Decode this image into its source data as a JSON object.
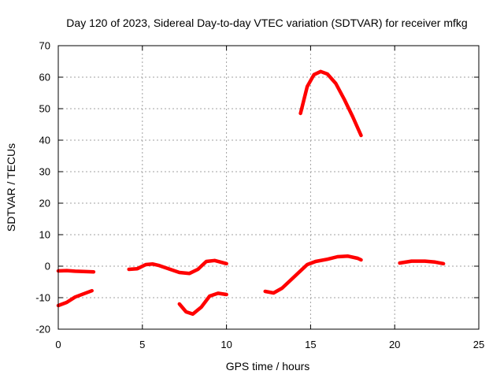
{
  "chart_data": {
    "type": "line",
    "title": "Day 120 of 2023, Sidereal Day-to-day VTEC variation (SDTVAR) for receiver mfkg",
    "xlabel": "GPS time / hours",
    "ylabel": "SDTVAR / TECUs",
    "xlim": [
      0,
      25
    ],
    "ylim": [
      -20,
      70
    ],
    "xticks": [
      0,
      5,
      10,
      15,
      20,
      25
    ],
    "yticks": [
      -20,
      -10,
      0,
      10,
      20,
      30,
      40,
      50,
      60,
      70
    ],
    "grid": true,
    "color": "#ff0000",
    "series": [
      {
        "name": "segment-1",
        "x": [
          0.0,
          0.5,
          1.0,
          1.5,
          2.1
        ],
        "y": [
          -1.5,
          -1.4,
          -1.6,
          -1.7,
          -1.8
        ]
      },
      {
        "name": "segment-2",
        "x": [
          0.0,
          0.5,
          1.0,
          1.5,
          2.0
        ],
        "y": [
          -12.5,
          -11.5,
          -9.8,
          -8.8,
          -7.8
        ]
      },
      {
        "name": "segment-3",
        "x": [
          4.2,
          4.7,
          5.2,
          5.6,
          6.0,
          6.6,
          7.2,
          7.8,
          8.3,
          8.8,
          9.3,
          10.0
        ],
        "y": [
          -1.0,
          -0.8,
          0.5,
          0.7,
          0.2,
          -0.9,
          -2.0,
          -2.3,
          -1.0,
          1.5,
          1.8,
          0.8
        ]
      },
      {
        "name": "segment-4",
        "x": [
          7.2,
          7.6,
          8.0,
          8.5,
          9.0,
          9.5,
          10.0
        ],
        "y": [
          -12.0,
          -14.5,
          -15.2,
          -13.0,
          -9.5,
          -8.6,
          -9.0
        ]
      },
      {
        "name": "segment-5",
        "x": [
          12.3,
          12.8,
          13.3,
          13.8,
          14.3,
          14.8,
          15.3,
          16.0,
          16.6,
          17.2,
          17.8,
          18.0
        ],
        "y": [
          -8.0,
          -8.5,
          -7.0,
          -4.5,
          -2.0,
          0.5,
          1.5,
          2.2,
          3.0,
          3.2,
          2.5,
          2.0
        ]
      },
      {
        "name": "segment-6",
        "x": [
          14.4,
          14.8,
          15.2,
          15.6,
          16.0,
          16.5,
          17.0,
          17.5,
          18.0
        ],
        "y": [
          48.5,
          57.0,
          60.8,
          61.8,
          61.0,
          58.0,
          53.0,
          47.5,
          41.5
        ]
      },
      {
        "name": "segment-7",
        "x": [
          20.3,
          21.0,
          21.8,
          22.4,
          22.9
        ],
        "y": [
          1.0,
          1.6,
          1.6,
          1.3,
          0.8
        ]
      }
    ]
  }
}
